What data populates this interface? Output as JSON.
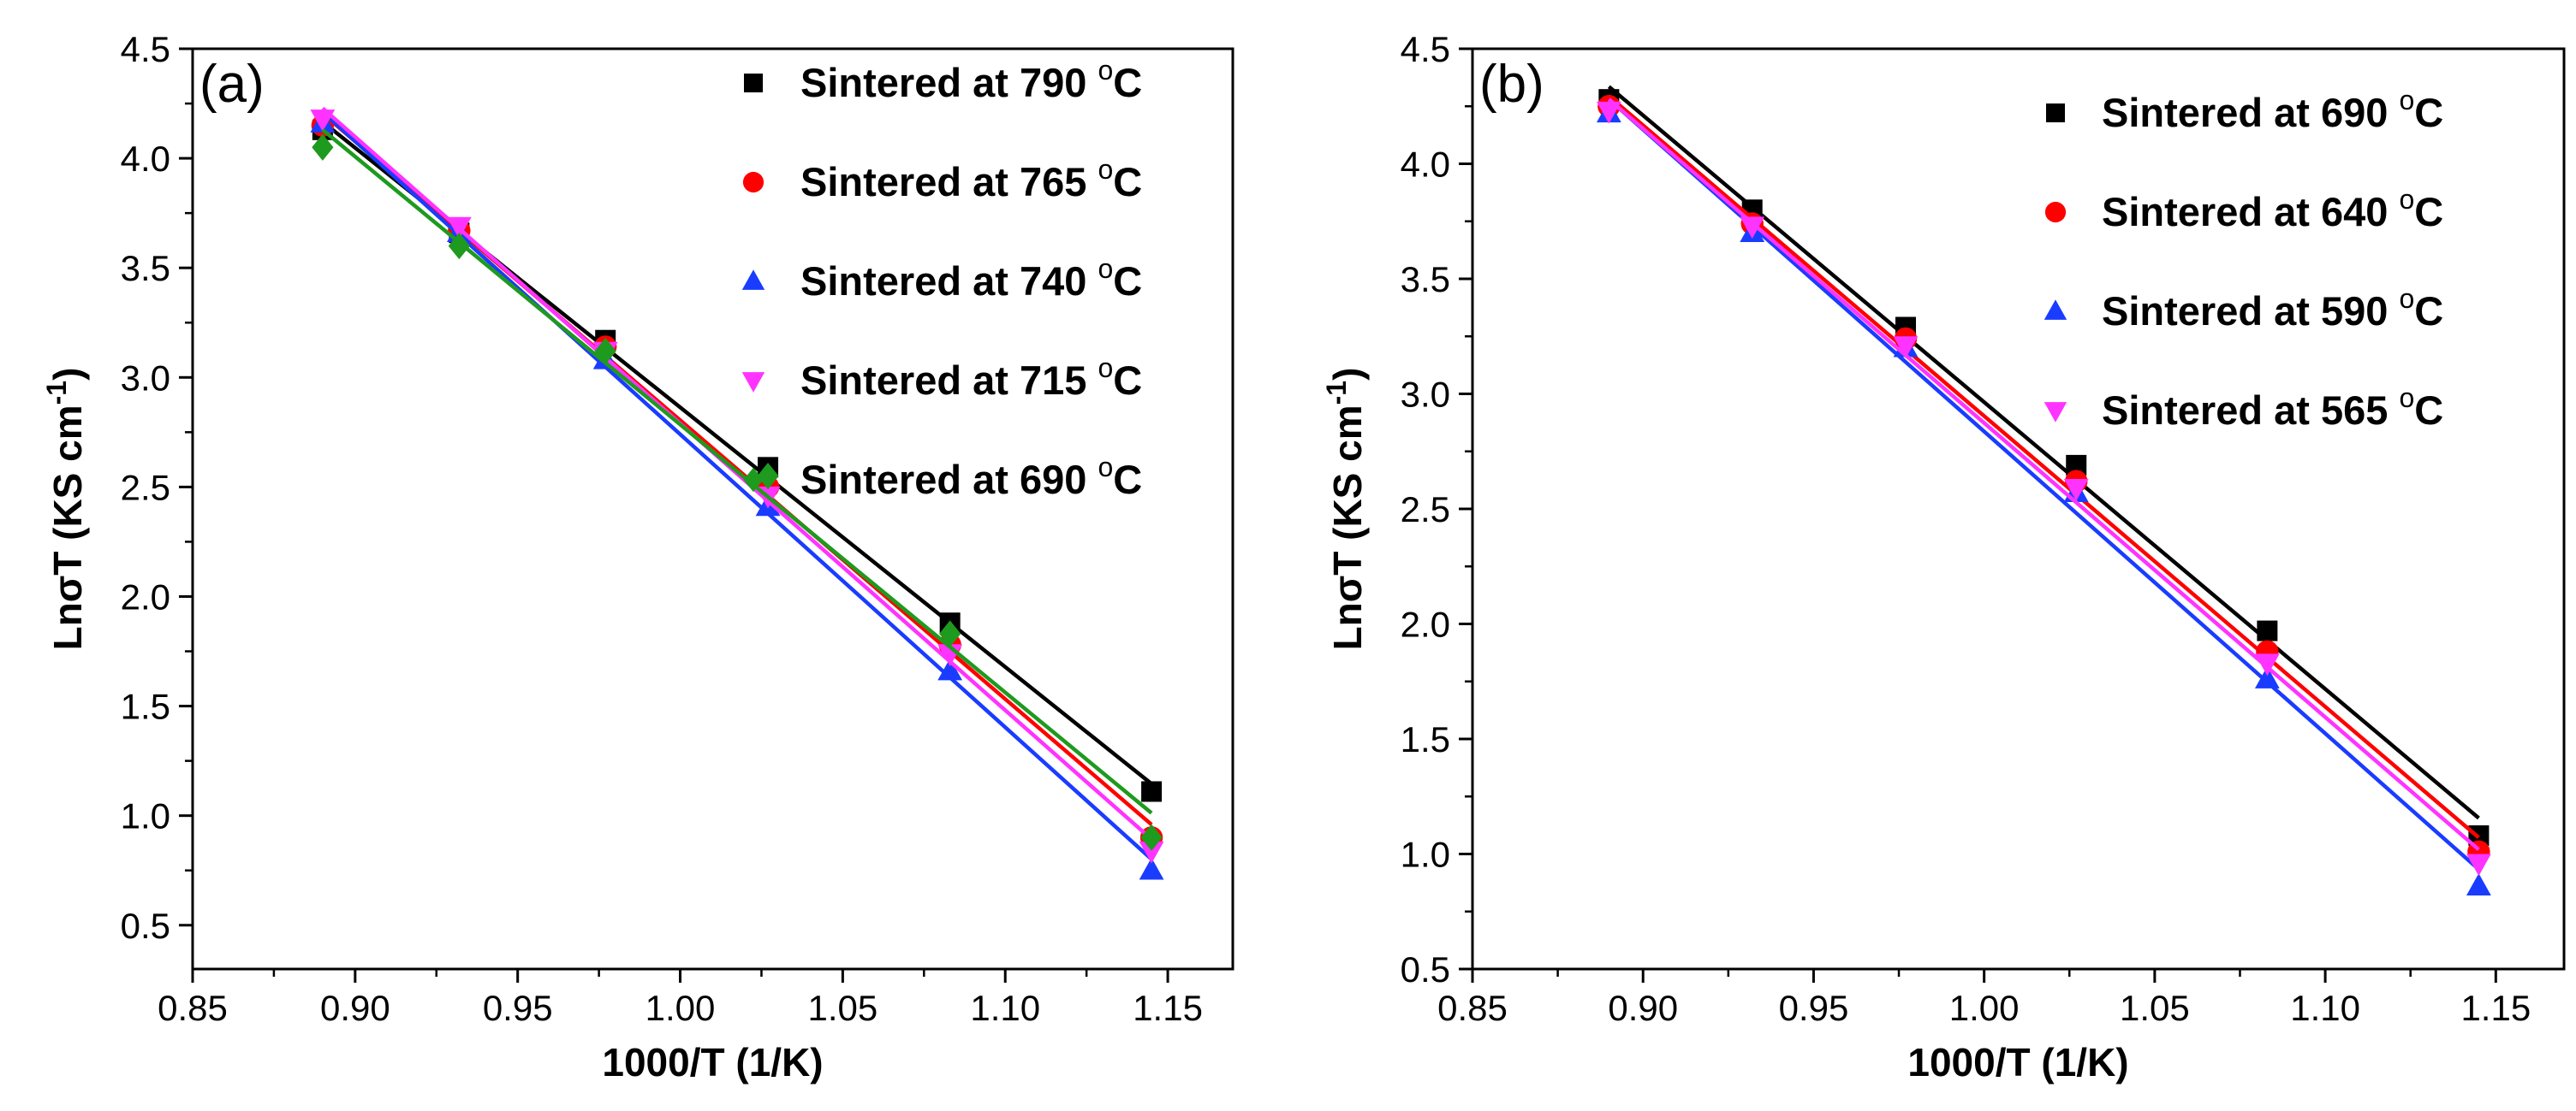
{
  "chart_data": [
    {
      "type": "scatter",
      "panel_label": "(a)",
      "xlabel": "1000/T (1/K)",
      "ylabel_main": "Lnσ",
      "ylabel_rest": "T (KS cm",
      "ylabel_sup": "-1",
      "ylabel_close": ")",
      "xlim": [
        0.85,
        1.17
      ],
      "ylim": [
        0.3,
        4.5
      ],
      "x_ticks": [
        0.85,
        0.9,
        0.95,
        1.0,
        1.05,
        1.1,
        1.15
      ],
      "x_tick_labels": [
        "0.85",
        "0.90",
        "0.95",
        "1.00",
        "1.05",
        "1.10",
        "1.15"
      ],
      "y_ticks": [
        0.5,
        1.0,
        1.5,
        2.0,
        2.5,
        3.0,
        3.5,
        4.0,
        4.5
      ],
      "y_tick_labels": [
        "0.5",
        "1.0",
        "1.5",
        "2.0",
        "2.5",
        "3.0",
        "3.5",
        "4.0",
        "4.5"
      ],
      "legend_position": "top-right",
      "fit_lines": true,
      "series": [
        {
          "name": "Sintered at 790 °C",
          "label_text": "Sintered at 790 ",
          "unit_sup": "o",
          "unit": "C",
          "color": "#000000",
          "marker": "square",
          "x": [
            0.89,
            0.932,
            0.977,
            1.027,
            1.083,
            1.145
          ],
          "y": [
            4.13,
            3.66,
            3.17,
            2.59,
            1.88,
            1.11
          ]
        },
        {
          "name": "Sintered at 765 °C",
          "label_text": "Sintered at 765 ",
          "unit_sup": "o",
          "unit": "C",
          "color": "#ff0000",
          "marker": "circle",
          "x": [
            0.89,
            0.932,
            0.977,
            1.027,
            1.083,
            1.145
          ],
          "y": [
            4.15,
            3.67,
            3.14,
            2.5,
            1.78,
            0.9
          ]
        },
        {
          "name": "Sintered at 740 °C",
          "label_text": "Sintered at 740 ",
          "unit_sup": "o",
          "unit": "C",
          "color": "#1a3cff",
          "marker": "triangle-up",
          "x": [
            0.89,
            0.932,
            0.977,
            1.027,
            1.083,
            1.145
          ],
          "y": [
            4.16,
            3.66,
            3.08,
            2.41,
            1.66,
            0.75
          ]
        },
        {
          "name": "Sintered at 715 °C",
          "label_text": "Sintered at 715 ",
          "unit_sup": "o",
          "unit": "C",
          "color": "#ff33ff",
          "marker": "triangle-down",
          "x": [
            0.89,
            0.932,
            0.977,
            1.027,
            1.083,
            1.145
          ],
          "y": [
            4.18,
            3.69,
            3.12,
            2.46,
            1.74,
            0.84
          ]
        },
        {
          "name": "Sintered at 690 °C",
          "label_text": "Sintered at 690 ",
          "unit_sup": "o",
          "unit": "C",
          "color": "#1e9a1e",
          "marker": "diamond",
          "x": [
            0.89,
            0.932,
            0.977,
            1.027,
            1.083,
            1.145
          ],
          "y": [
            4.05,
            3.6,
            3.12,
            2.55,
            1.83,
            0.9
          ]
        }
      ]
    },
    {
      "type": "scatter",
      "panel_label": "(b)",
      "xlabel": "1000/T (1/K)",
      "ylabel_main": "Lnσ",
      "ylabel_rest": "T (KS cm",
      "ylabel_sup": "-1",
      "ylabel_close": ")",
      "xlim": [
        0.85,
        1.17
      ],
      "ylim": [
        0.5,
        4.5
      ],
      "x_ticks": [
        0.85,
        0.9,
        0.95,
        1.0,
        1.05,
        1.1,
        1.15
      ],
      "x_tick_labels": [
        "0.85",
        "0.90",
        "0.95",
        "1.00",
        "1.05",
        "1.10",
        "1.15"
      ],
      "y_ticks": [
        0.5,
        1.0,
        1.5,
        2.0,
        2.5,
        3.0,
        3.5,
        4.0,
        4.5
      ],
      "y_tick_labels": [
        "0.5",
        "1.0",
        "1.5",
        "2.0",
        "2.5",
        "3.0",
        "3.5",
        "4.0",
        "4.5"
      ],
      "legend_position": "top-right",
      "fit_lines": true,
      "series": [
        {
          "name": "Sintered at 690 °C",
          "label_text": "Sintered at 690 ",
          "unit_sup": "o",
          "unit": "C",
          "color": "#000000",
          "marker": "square",
          "x": [
            0.89,
            0.932,
            0.977,
            1.027,
            1.083,
            1.145
          ],
          "y": [
            4.28,
            3.8,
            3.29,
            2.69,
            1.97,
            1.08
          ]
        },
        {
          "name": "Sintered at 640 °C",
          "label_text": "Sintered at 640 ",
          "unit_sup": "o",
          "unit": "C",
          "color": "#ff0000",
          "marker": "circle",
          "x": [
            0.89,
            0.932,
            0.977,
            1.027,
            1.083,
            1.145
          ],
          "y": [
            4.25,
            3.74,
            3.24,
            2.62,
            1.88,
            1.01
          ]
        },
        {
          "name": "Sintered at 590 °C",
          "label_text": "Sintered at 590 ",
          "unit_sup": "o",
          "unit": "C",
          "color": "#1a3cff",
          "marker": "triangle-up",
          "x": [
            0.89,
            0.932,
            0.977,
            1.027,
            1.083,
            1.145
          ],
          "y": [
            4.22,
            3.7,
            3.2,
            2.57,
            1.76,
            0.86
          ]
        },
        {
          "name": "Sintered at 565 °C",
          "label_text": "Sintered at 565 ",
          "unit_sup": "o",
          "unit": "C",
          "color": "#ff33ff",
          "marker": "triangle-down",
          "x": [
            0.89,
            0.932,
            0.977,
            1.027,
            1.083,
            1.145
          ],
          "y": [
            4.23,
            3.73,
            3.21,
            2.59,
            1.83,
            0.96
          ]
        }
      ]
    }
  ]
}
